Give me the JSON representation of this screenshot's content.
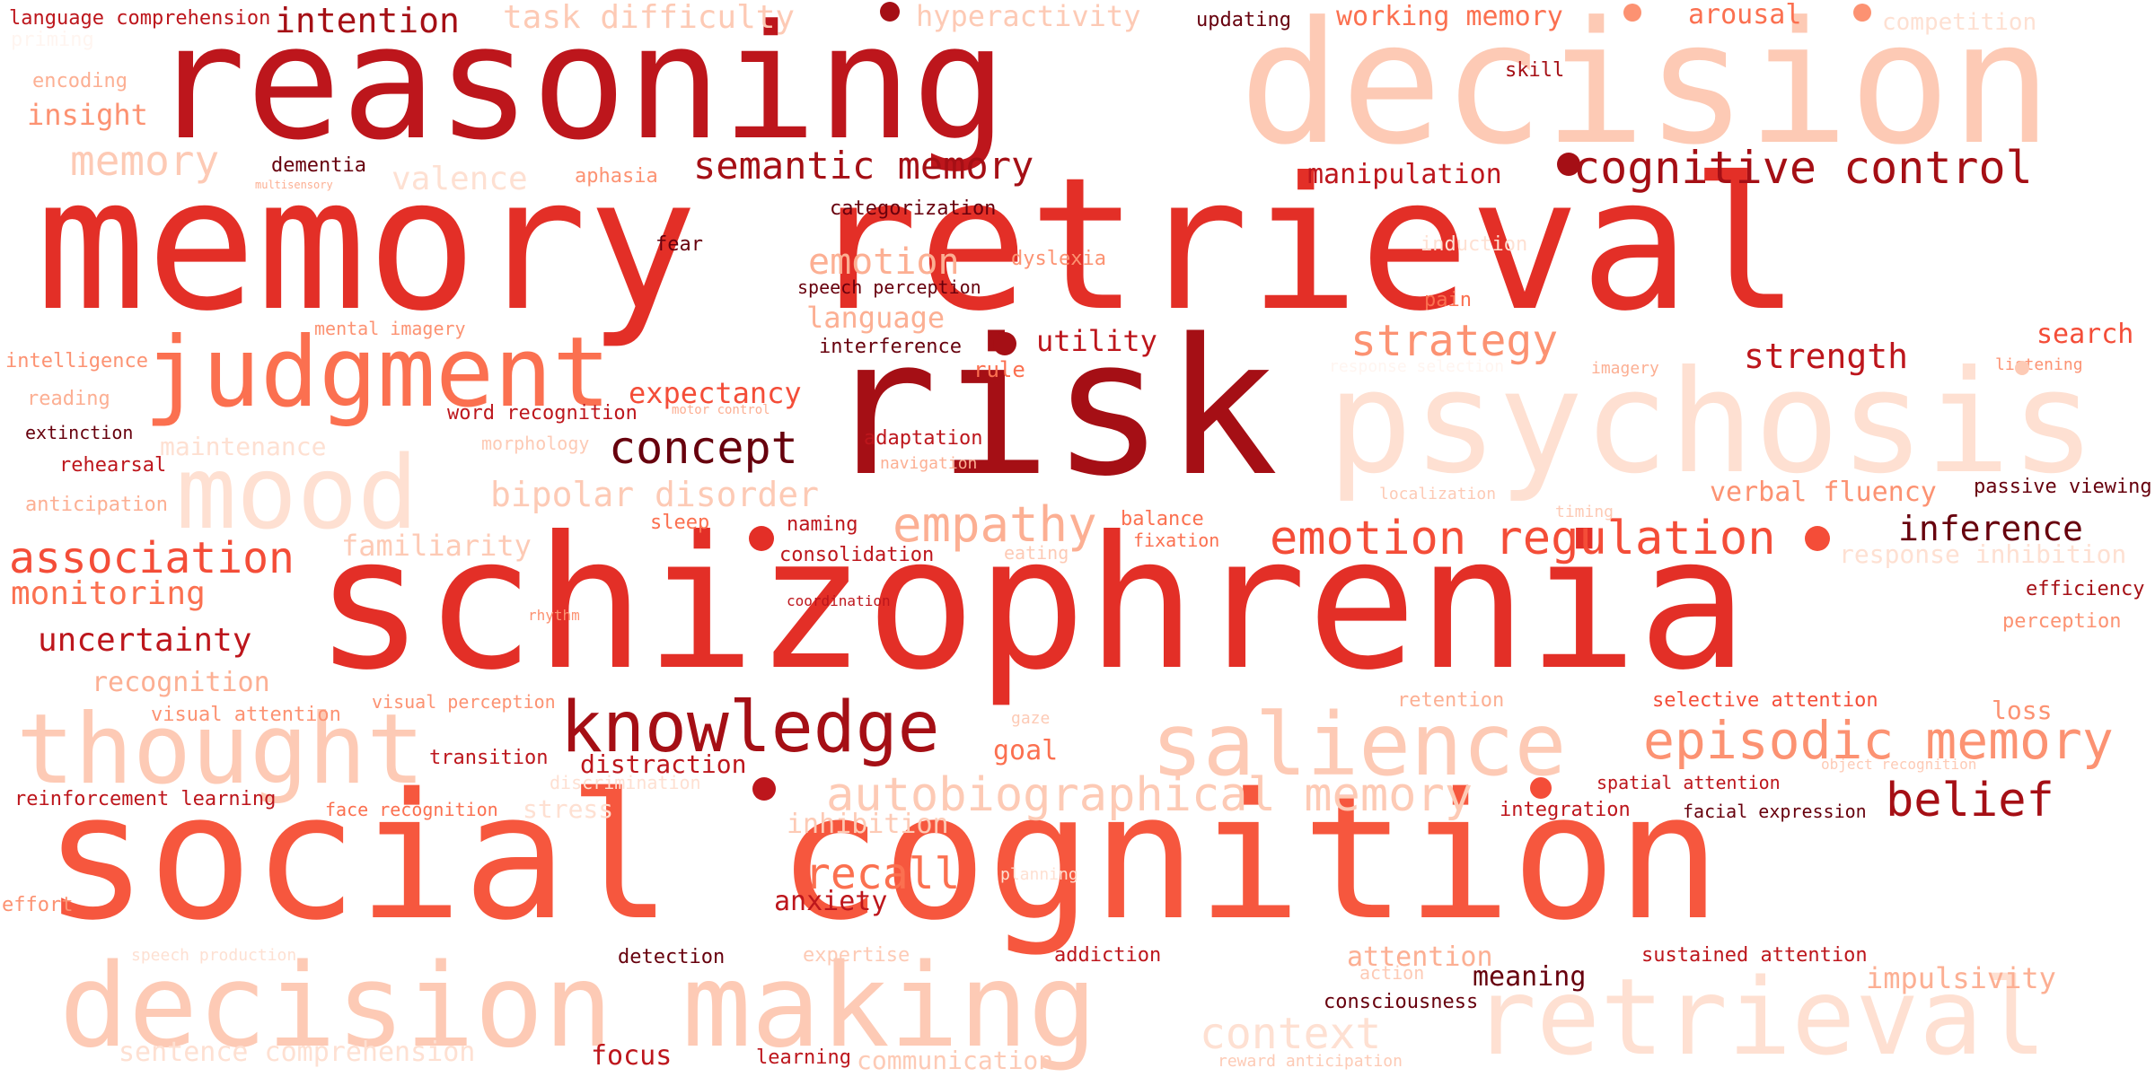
{
  "colors": {
    "darkest": "#67000d",
    "dark": "#a50f15",
    "deep": "#bd161c",
    "red": "#e32f27",
    "coral": "#f44d38",
    "salmon": "#f6573e",
    "orange_red": "#fb7050",
    "light_salmon": "#fc9272",
    "peach": "#fcaf93",
    "light_peach": "#fdcab5",
    "pale": "#fee0d2",
    "faint": "#fff5f0"
  },
  "words": [
    {
      "text": "reasoning",
      "tone": "deep"
    },
    {
      "text": "decision",
      "tone": "light_peach"
    },
    {
      "text": "memory retrieval",
      "tone": "red"
    },
    {
      "text": "risk",
      "tone": "dark"
    },
    {
      "text": "psychosis",
      "tone": "pale"
    },
    {
      "text": "schizophrenia",
      "tone": "red"
    },
    {
      "text": "social cognition",
      "tone": "salmon"
    },
    {
      "text": "decision making",
      "tone": "light_peach"
    },
    {
      "text": "retrieval",
      "tone": "pale"
    },
    {
      "text": "judgment",
      "tone": "orange_red"
    },
    {
      "text": "mood",
      "tone": "pale"
    },
    {
      "text": "thought",
      "tone": "light_peach"
    },
    {
      "text": "salience",
      "tone": "light_peach"
    },
    {
      "text": "knowledge",
      "tone": "dark"
    },
    {
      "text": "episodic memory",
      "tone": "light_salmon"
    },
    {
      "text": "autobiographical memory",
      "tone": "light_peach"
    },
    {
      "text": "emotion regulation",
      "tone": "coral"
    },
    {
      "text": "cognitive control",
      "tone": "dark"
    },
    {
      "text": "semantic memory",
      "tone": "dark"
    },
    {
      "text": "strategy",
      "tone": "light_salmon"
    },
    {
      "text": "empathy",
      "tone": "peach"
    },
    {
      "text": "concept",
      "tone": "darkest"
    },
    {
      "text": "belief",
      "tone": "dark"
    },
    {
      "text": "association",
      "tone": "coral"
    },
    {
      "text": "context",
      "tone": "pale"
    },
    {
      "text": "recall",
      "tone": "orange_red"
    },
    {
      "text": "emotion",
      "tone": "peach"
    },
    {
      "text": "intention",
      "tone": "dark"
    },
    {
      "text": "memory",
      "tone": "light_peach"
    },
    {
      "text": "task difficulty",
      "tone": "light_peach"
    },
    {
      "text": "working memory",
      "tone": "orange_red"
    },
    {
      "text": "arousal",
      "tone": "orange_red"
    },
    {
      "text": "hyperactivity",
      "tone": "light_peach"
    },
    {
      "text": "competition",
      "tone": "pale"
    },
    {
      "text": "valence",
      "tone": "pale"
    },
    {
      "text": "bipolar disorder",
      "tone": "light_peach"
    },
    {
      "text": "inference",
      "tone": "darkest"
    },
    {
      "text": "strength",
      "tone": "deep"
    },
    {
      "text": "uncertainty",
      "tone": "deep"
    },
    {
      "text": "monitoring",
      "tone": "orange_red"
    },
    {
      "text": "familiarity",
      "tone": "light_peach"
    },
    {
      "text": "maintenance",
      "tone": "pale"
    },
    {
      "text": "verbal fluency",
      "tone": "light_salmon"
    },
    {
      "text": "expectancy",
      "tone": "coral"
    },
    {
      "text": "language",
      "tone": "peach"
    },
    {
      "text": "utility",
      "tone": "deep"
    },
    {
      "text": "manipulation",
      "tone": "deep"
    },
    {
      "text": "insight",
      "tone": "light_salmon"
    },
    {
      "text": "recognition",
      "tone": "peach"
    },
    {
      "text": "impulsivity",
      "tone": "peach"
    },
    {
      "text": "inhibition",
      "tone": "light_peach"
    },
    {
      "text": "anxiety",
      "tone": "deep"
    },
    {
      "text": "distraction",
      "tone": "deep"
    },
    {
      "text": "goal",
      "tone": "orange_red"
    },
    {
      "text": "attention",
      "tone": "peach"
    },
    {
      "text": "meaning",
      "tone": "darkest"
    },
    {
      "text": "sentence comprehension",
      "tone": "pale"
    },
    {
      "text": "communication",
      "tone": "light_peach"
    },
    {
      "text": "focus",
      "tone": "deep"
    },
    {
      "text": "search",
      "tone": "coral"
    },
    {
      "text": "response inhibition",
      "tone": "pale"
    },
    {
      "text": "stress",
      "tone": "pale"
    },
    {
      "text": "loss",
      "tone": "light_salmon"
    },
    {
      "text": "language comprehension",
      "tone": "deep"
    },
    {
      "text": "updating",
      "tone": "darkest"
    },
    {
      "text": "skill",
      "tone": "dark"
    },
    {
      "text": "priming",
      "tone": "faint"
    },
    {
      "text": "encoding",
      "tone": "peach"
    },
    {
      "text": "dementia",
      "tone": "darkest"
    },
    {
      "text": "multisensory",
      "tone": "peach"
    },
    {
      "text": "aphasia",
      "tone": "light_salmon"
    },
    {
      "text": "categorization",
      "tone": "darkest"
    },
    {
      "text": "fear",
      "tone": "darkest"
    },
    {
      "text": "speech perception",
      "tone": "darkest"
    },
    {
      "text": "dyslexia",
      "tone": "light_salmon"
    },
    {
      "text": "induction",
      "tone": "pale"
    },
    {
      "text": "pain",
      "tone": "orange_red"
    },
    {
      "text": "mental imagery",
      "tone": "light_salmon"
    },
    {
      "text": "interference",
      "tone": "darkest"
    },
    {
      "text": "rule",
      "tone": "orange_red"
    },
    {
      "text": "response selection",
      "tone": "faint"
    },
    {
      "text": "imagery",
      "tone": "peach"
    },
    {
      "text": "listening",
      "tone": "light_salmon"
    },
    {
      "text": "intelligence",
      "tone": "light_salmon"
    },
    {
      "text": "reading",
      "tone": "peach"
    },
    {
      "text": "word recognition",
      "tone": "deep"
    },
    {
      "text": "motor control",
      "tone": "peach"
    },
    {
      "text": "morphology",
      "tone": "light_peach"
    },
    {
      "text": "adaptation",
      "tone": "deep"
    },
    {
      "text": "navigation",
      "tone": "peach"
    },
    {
      "text": "extinction",
      "tone": "darkest"
    },
    {
      "text": "rehearsal",
      "tone": "deep"
    },
    {
      "text": "passive viewing",
      "tone": "darkest"
    },
    {
      "text": "localization",
      "tone": "light_peach"
    },
    {
      "text": "timing",
      "tone": "light_peach"
    },
    {
      "text": "anticipation",
      "tone": "peach"
    },
    {
      "text": "sleep",
      "tone": "orange_red"
    },
    {
      "text": "naming",
      "tone": "deep"
    },
    {
      "text": "balance",
      "tone": "orange_red"
    },
    {
      "text": "fixation",
      "tone": "orange_red"
    },
    {
      "text": "eating",
      "tone": "light_peach"
    },
    {
      "text": "consolidation",
      "tone": "deep"
    },
    {
      "text": "efficiency",
      "tone": "dark"
    },
    {
      "text": "rhythm",
      "tone": "light_salmon"
    },
    {
      "text": "coordination",
      "tone": "deep"
    },
    {
      "text": "perception",
      "tone": "light_salmon"
    },
    {
      "text": "visual perception",
      "tone": "light_salmon"
    },
    {
      "text": "visual attention",
      "tone": "light_salmon"
    },
    {
      "text": "retention",
      "tone": "peach"
    },
    {
      "text": "selective attention",
      "tone": "coral"
    },
    {
      "text": "gaze",
      "tone": "light_peach"
    },
    {
      "text": "transition",
      "tone": "deep"
    },
    {
      "text": "object recognition",
      "tone": "light_peach"
    },
    {
      "text": "spatial attention",
      "tone": "deep"
    },
    {
      "text": "reinforcement learning",
      "tone": "deep"
    },
    {
      "text": "face recognition",
      "tone": "orange_red"
    },
    {
      "text": "discrimination",
      "tone": "pale"
    },
    {
      "text": "integration",
      "tone": "deep"
    },
    {
      "text": "facial expression",
      "tone": "darkest"
    },
    {
      "text": "planning",
      "tone": "pale"
    },
    {
      "text": "effort",
      "tone": "light_salmon"
    },
    {
      "text": "speech production",
      "tone": "pale"
    },
    {
      "text": "detection",
      "tone": "darkest"
    },
    {
      "text": "expertise",
      "tone": "light_peach"
    },
    {
      "text": "addiction",
      "tone": "deep"
    },
    {
      "text": "sustained attention",
      "tone": "deep"
    },
    {
      "text": "action",
      "tone": "light_peach"
    },
    {
      "text": "consciousness",
      "tone": "darkest"
    },
    {
      "text": "learning",
      "tone": "deep"
    },
    {
      "text": "reward anticipation",
      "tone": "light_peach"
    }
  ]
}
